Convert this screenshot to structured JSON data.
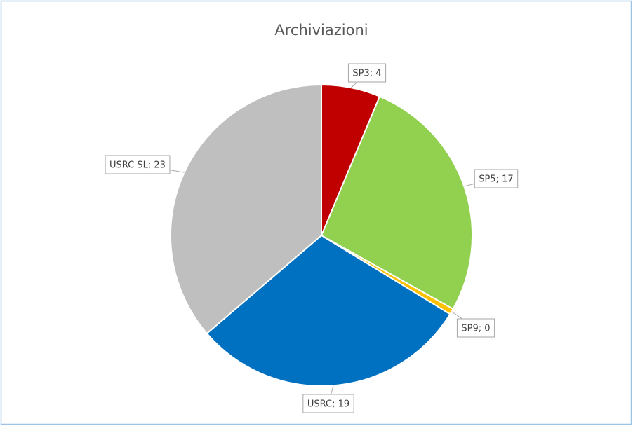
{
  "chart_data": {
    "type": "pie",
    "title": "Archiviazioni",
    "values": [
      4,
      17,
      0.4,
      19,
      23
    ],
    "value_labels": [
      "SP3; 4",
      "SP5; 17",
      "SP9; 0",
      "USRC; 19",
      "USRC SL; 23"
    ],
    "colors": [
      "#c00000",
      "#92d050",
      "#ffc000",
      "#0070c0",
      "#bfbfbf"
    ]
  }
}
